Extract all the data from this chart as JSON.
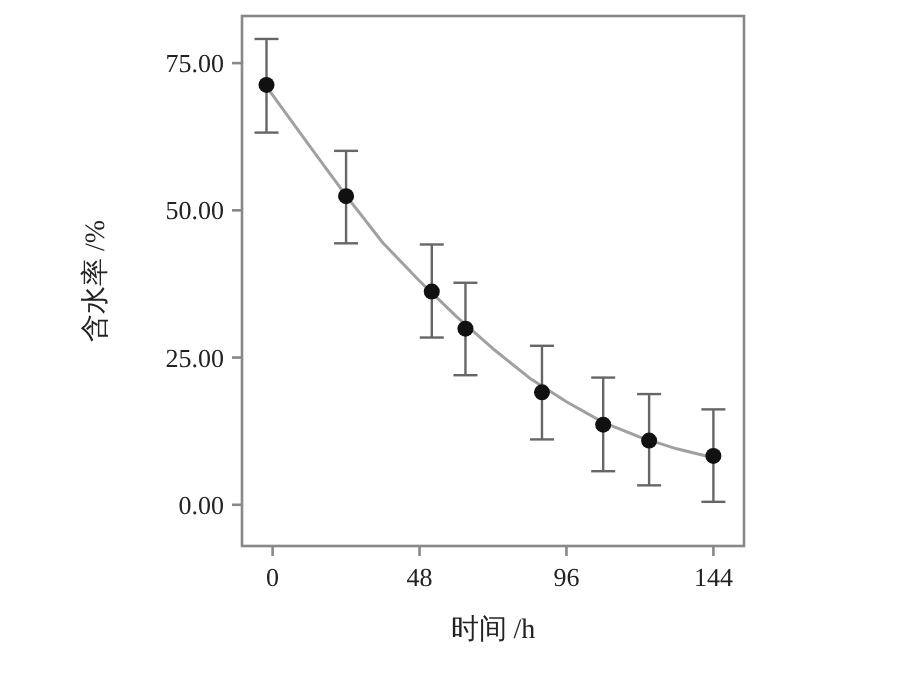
{
  "chart_data": {
    "type": "scatter",
    "xlabel": "时间 /h",
    "ylabel": "含水率 /%",
    "xlim": [
      -10,
      154
    ],
    "ylim": [
      -7,
      83
    ],
    "xticks": [
      0,
      48,
      96,
      144
    ],
    "yticks": [
      {
        "value": 0,
        "label": "0.00"
      },
      {
        "value": 25,
        "label": "25.00"
      },
      {
        "value": 50,
        "label": "50.00"
      },
      {
        "value": 75,
        "label": "75.00"
      }
    ],
    "grid": false,
    "series": [
      {
        "type": "line",
        "color": "#a0a0a0",
        "marker": "none",
        "x": [
          -2,
          12,
          24,
          36,
          48,
          60,
          72,
          84,
          96,
          108,
          120,
          132,
          144
        ],
        "values": [
          71,
          61,
          52.5,
          44.5,
          38,
          32,
          26.5,
          21.5,
          17.5,
          14,
          11.5,
          9.5,
          8
        ]
      },
      {
        "color": "#111111",
        "marker": "circle",
        "x": [
          -2,
          24,
          52,
          63,
          88,
          108,
          123,
          144
        ],
        "values": [
          71.3,
          52.4,
          36.2,
          29.9,
          19.1,
          13.6,
          10.9,
          8.3
        ],
        "errors": [
          [
            63.2,
            79.1
          ],
          [
            44.4,
            60.1
          ],
          [
            28.4,
            44.2
          ],
          [
            22.0,
            37.7
          ],
          [
            11.1,
            27.0
          ],
          [
            5.7,
            21.6
          ],
          [
            3.3,
            18.8
          ],
          [
            0.5,
            16.2
          ]
        ]
      }
    ]
  }
}
